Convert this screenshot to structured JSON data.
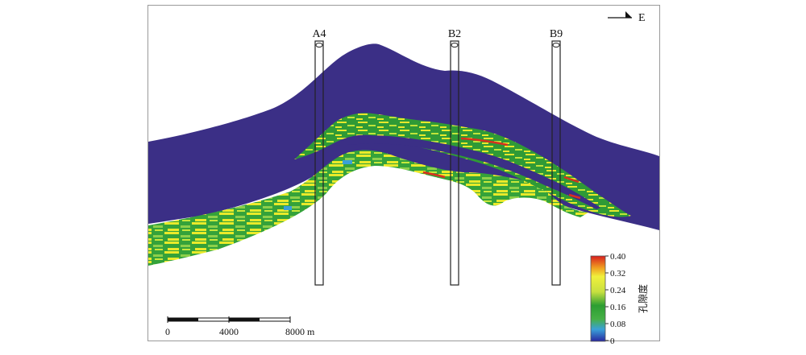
{
  "north_arrow": {
    "label": "E"
  },
  "wells": [
    {
      "name": "A4"
    },
    {
      "name": "B2"
    },
    {
      "name": "B9"
    }
  ],
  "scale_bar": {
    "ticks": [
      "0",
      "4000",
      "8000 m"
    ]
  },
  "colorbar": {
    "title": "孔隙度",
    "ticks": [
      "0.40",
      "0.32",
      "0.24",
      "0.16",
      "0.08",
      "0"
    ],
    "stops": [
      "#d81e1e",
      "#e8c832",
      "#f0f03c",
      "#2c9e32",
      "#46b046",
      "#3aa0d8",
      "#2828a0"
    ]
  },
  "colors": {
    "caprock": "#3b2f86",
    "reservoir_green": "#35a23a",
    "reservoir_yellow": "#e9ea2a",
    "high_porosity_red": "#d8321e"
  }
}
